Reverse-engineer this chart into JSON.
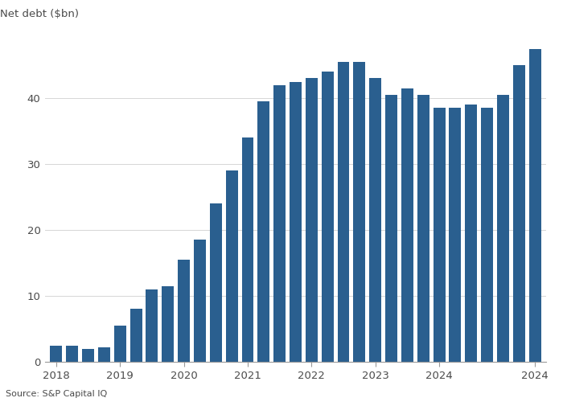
{
  "values": [
    2.5,
    2.5,
    2.0,
    2.2,
    5.5,
    8.0,
    11.0,
    11.5,
    15.5,
    18.5,
    24.0,
    29.0,
    34.0,
    39.5,
    42.0,
    42.5,
    43.0,
    44.0,
    45.5,
    45.5,
    43.0,
    40.5,
    41.5,
    40.5,
    38.5,
    38.5,
    39.0,
    38.5,
    40.5,
    45.0,
    47.5
  ],
  "bar_color": "#2a5f8f",
  "ylabel": "Net debt ($bn)",
  "ylim": [
    0,
    50
  ],
  "yticks": [
    0,
    10,
    20,
    30,
    40
  ],
  "source_text": "Source: S&P Capital IQ",
  "background_color": "#ffffff",
  "plot_bg_color": "#ffffff",
  "text_color": "#4a4a4a",
  "grid_color": "#cccccc",
  "axis_color": "#999999",
  "year_labels": [
    "2018",
    "2019",
    "2020",
    "2021",
    "2022",
    "2023",
    "2024",
    "2024"
  ],
  "year_bar_indices": [
    0,
    4,
    8,
    12,
    16,
    20,
    24,
    30
  ]
}
